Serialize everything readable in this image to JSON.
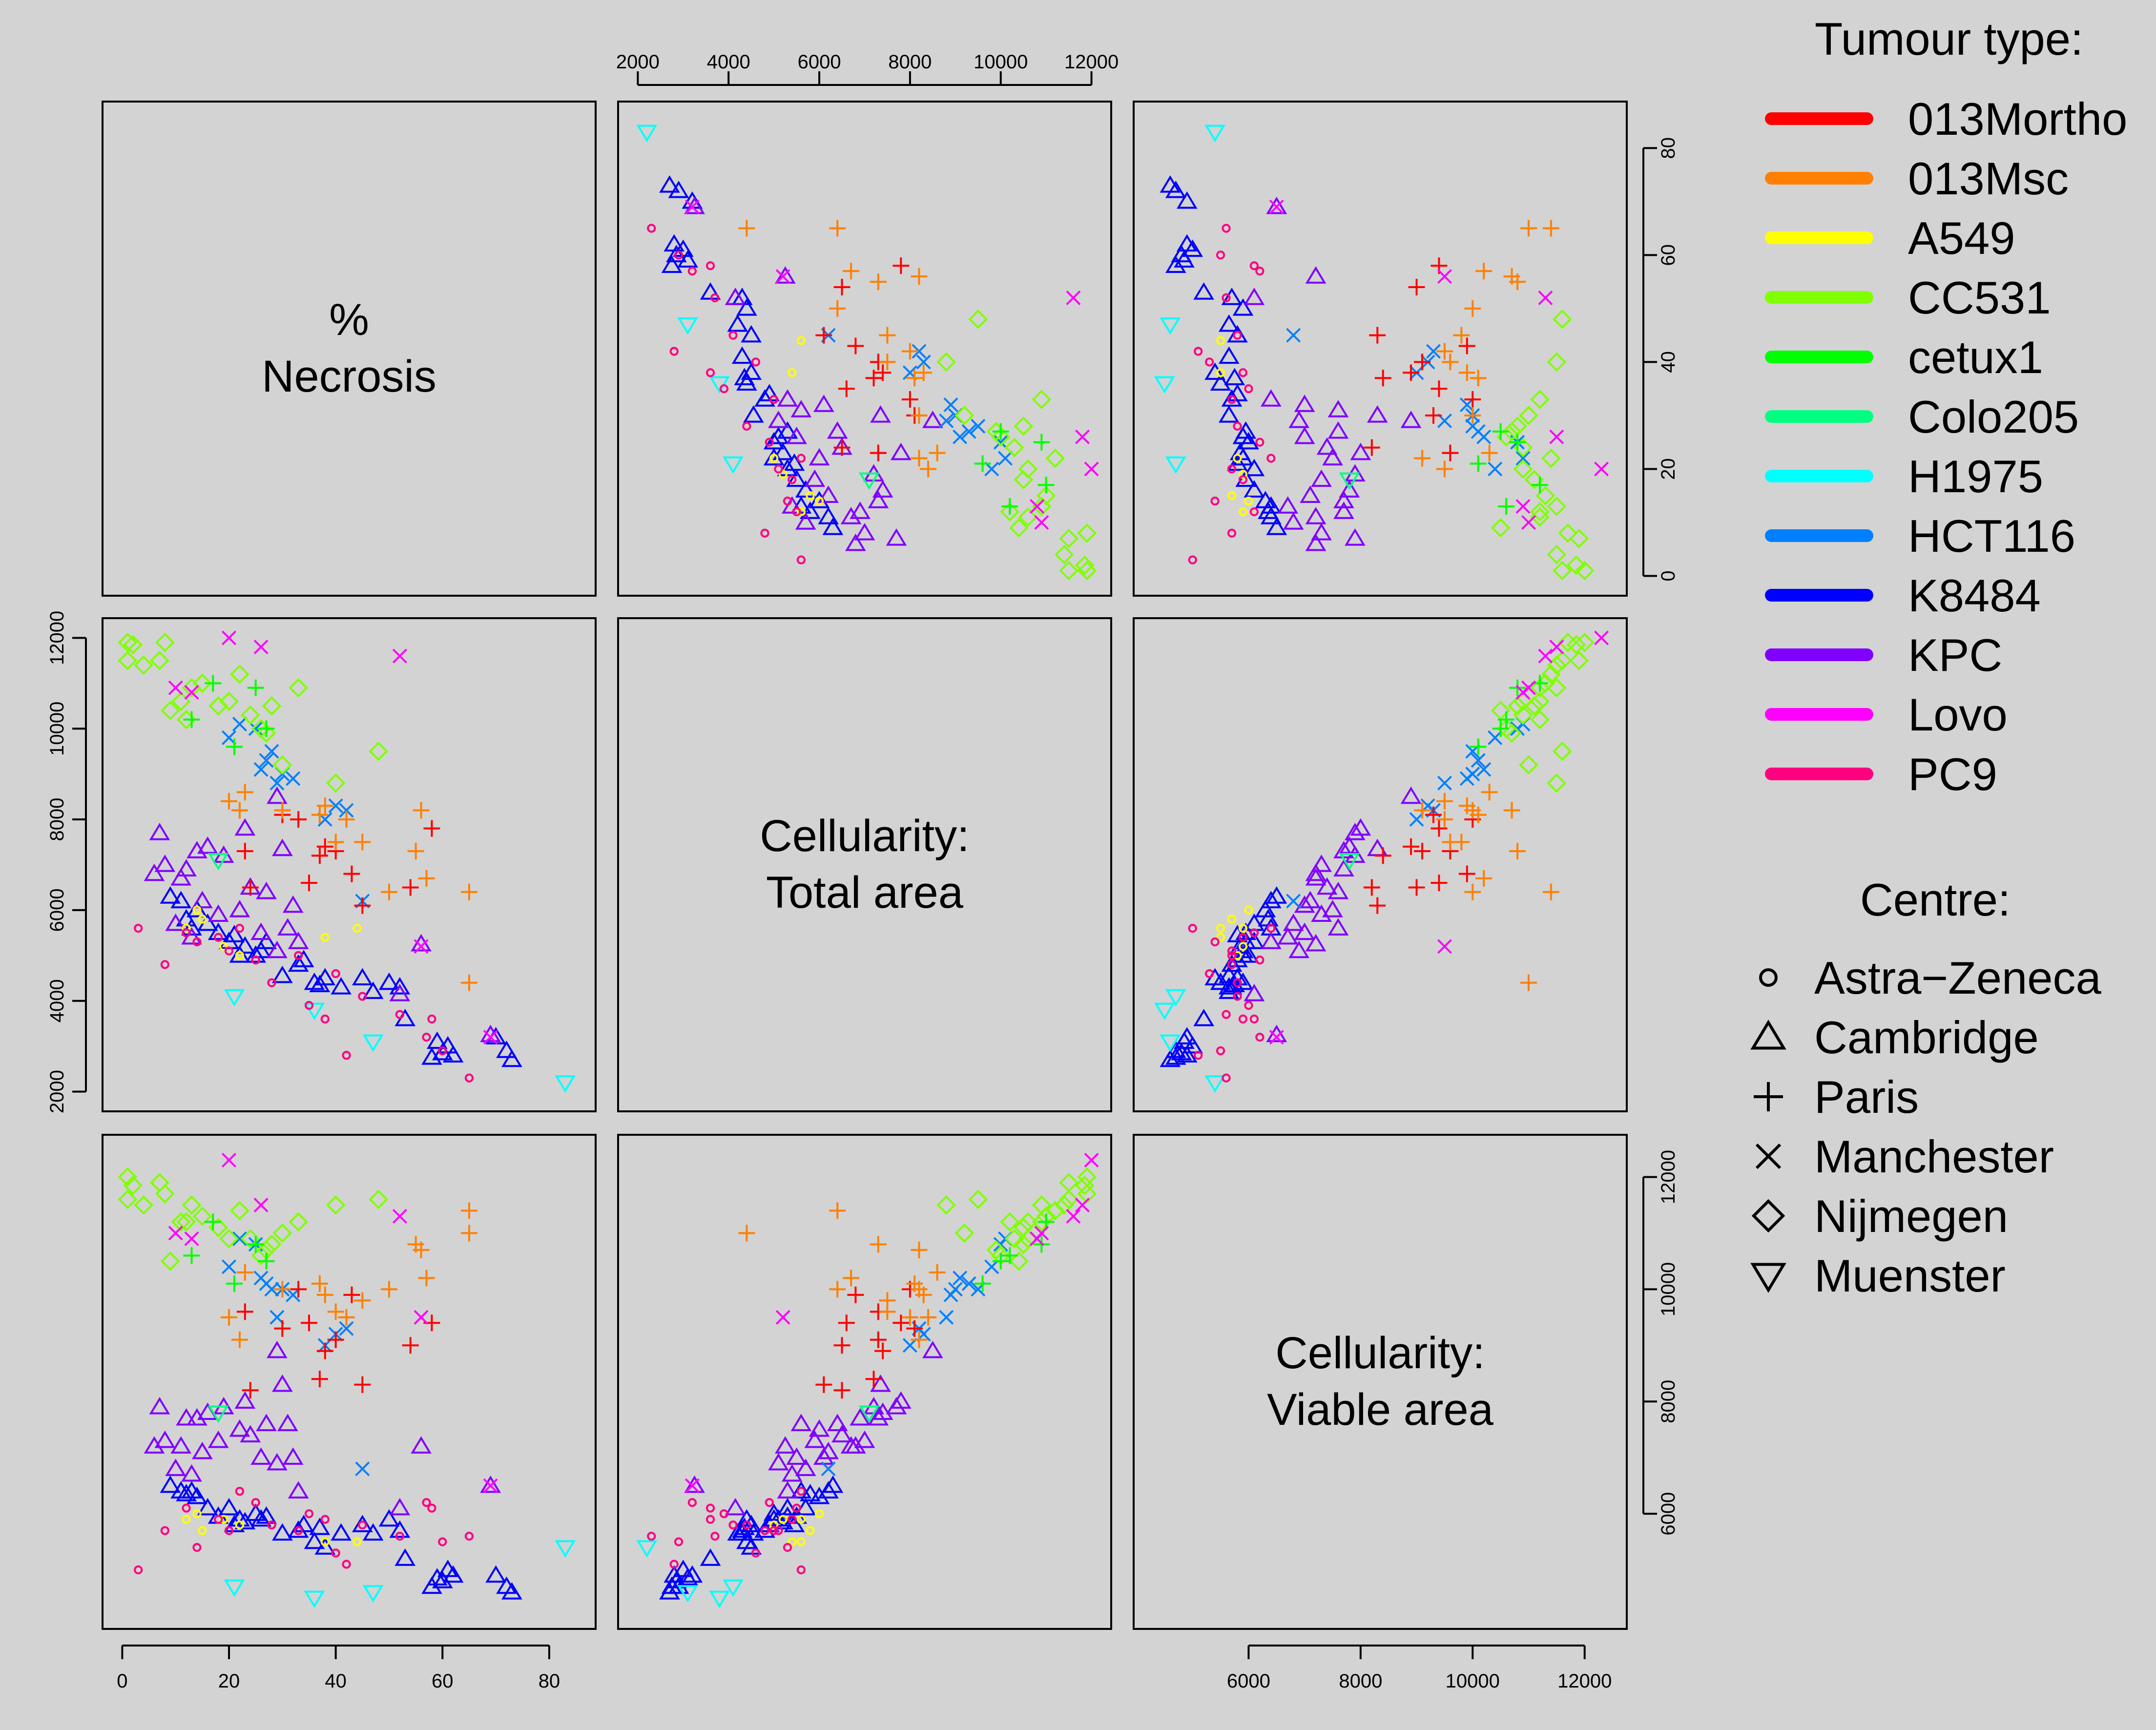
{
  "chart_data": {
    "type": "scatter",
    "subtype": "scatter-plot-matrix",
    "variables": [
      {
        "key": "necrosis",
        "label": [
          "%",
          "Necrosis"
        ],
        "range": [
          0,
          85
        ],
        "ticks": [
          0,
          20,
          40,
          60,
          80
        ]
      },
      {
        "key": "total",
        "label": [
          "Cellularity:",
          "Total area"
        ],
        "range": [
          2000,
          12000
        ],
        "ticks": [
          2000,
          4000,
          6000,
          8000,
          10000,
          12000
        ]
      },
      {
        "key": "viable",
        "label": [
          "Cellularity:",
          "Viable area"
        ],
        "range": [
          4300,
          12400
        ],
        "ticks": [
          6000,
          8000,
          10000,
          12000
        ]
      }
    ],
    "tumour_legend": {
      "title": "Tumour type:",
      "items": [
        {
          "name": "013Mortho",
          "color": "#FF0000"
        },
        {
          "name": "013Msc",
          "color": "#FF8000"
        },
        {
          "name": "A549",
          "color": "#FFFF00"
        },
        {
          "name": "CC531",
          "color": "#80FF00"
        },
        {
          "name": "cetux1",
          "color": "#00FF00"
        },
        {
          "name": "Colo205",
          "color": "#00FF80"
        },
        {
          "name": "H1975",
          "color": "#00FFFF"
        },
        {
          "name": "HCT116",
          "color": "#0080FF"
        },
        {
          "name": "K8484",
          "color": "#0000FF"
        },
        {
          "name": "KPC",
          "color": "#8000FF"
        },
        {
          "name": "Lovo",
          "color": "#FF00FF"
        },
        {
          "name": "PC9",
          "color": "#FF0080"
        }
      ]
    },
    "centre_legend": {
      "title": "Centre:",
      "items": [
        {
          "name": "Astra−Zeneca",
          "symbol": "circle-small"
        },
        {
          "name": "Cambridge",
          "symbol": "triangle-up"
        },
        {
          "name": "Paris",
          "symbol": "plus"
        },
        {
          "name": "Manchester",
          "symbol": "cross"
        },
        {
          "name": "Nijmegen",
          "symbol": "diamond"
        },
        {
          "name": "Muenster",
          "symbol": "triangle-down"
        }
      ]
    },
    "points_columns": [
      "tumour",
      "centre",
      "necrosis",
      "total",
      "viable"
    ],
    "points": [
      [
        "K8484",
        "Cambridge",
        73,
        2700,
        4600
      ],
      [
        "K8484",
        "Cambridge",
        70,
        3200,
        4900
      ],
      [
        "K8484",
        "Cambridge",
        72,
        2900,
        4700
      ],
      [
        "K8484",
        "Cambridge",
        62,
        2800,
        4900
      ],
      [
        "K8484",
        "Cambridge",
        61,
        3000,
        5000
      ],
      [
        "K8484",
        "Cambridge",
        60,
        2850,
        4800
      ],
      [
        "K8484",
        "Cambridge",
        59,
        3100,
        4850
      ],
      [
        "K8484",
        "Cambridge",
        58,
        2750,
        4700
      ],
      [
        "K8484",
        "Cambridge",
        53,
        3600,
        5200
      ],
      [
        "K8484",
        "Cambridge",
        52,
        4300,
        5700
      ],
      [
        "K8484",
        "Cambridge",
        50,
        4400,
        5900
      ],
      [
        "K8484",
        "Cambridge",
        47,
        4200,
        5650
      ],
      [
        "K8484",
        "Cambridge",
        45,
        4500,
        5800
      ],
      [
        "K8484",
        "Cambridge",
        41,
        4300,
        5650
      ],
      [
        "K8484",
        "Cambridge",
        37,
        4350,
        5750
      ],
      [
        "K8484",
        "Cambridge",
        34,
        4900,
        5800
      ],
      [
        "K8484",
        "Cambridge",
        33,
        4800,
        5700
      ],
      [
        "K8484",
        "Cambridge",
        30,
        4550,
        5650
      ],
      [
        "K8484",
        "Cambridge",
        27,
        5300,
        5950
      ],
      [
        "K8484",
        "Cambridge",
        25,
        5000,
        6000
      ],
      [
        "K8484",
        "Cambridge",
        23,
        5200,
        5850
      ],
      [
        "K8484",
        "Cambridge",
        22,
        5000,
        5900
      ],
      [
        "K8484",
        "Cambridge",
        21,
        5450,
        5800
      ],
      [
        "K8484",
        "Cambridge",
        20,
        5300,
        6100
      ],
      [
        "K8484",
        "Cambridge",
        18,
        5500,
        5950
      ],
      [
        "K8484",
        "Cambridge",
        16,
        5700,
        6100
      ],
      [
        "K8484",
        "Cambridge",
        14,
        6000,
        6300
      ],
      [
        "K8484",
        "Cambridge",
        13,
        5600,
        6400
      ],
      [
        "K8484",
        "Cambridge",
        12,
        5800,
        6350
      ],
      [
        "K8484",
        "Cambridge",
        11,
        6200,
        6400
      ],
      [
        "K8484",
        "Cambridge",
        9,
        6300,
        6500
      ],
      [
        "K8484",
        "Cambridge",
        36,
        4400,
        5500
      ],
      [
        "K8484",
        "Cambridge",
        38,
        4500,
        5400
      ],
      [
        "K8484",
        "Cambridge",
        26,
        5100,
        5900
      ],
      [
        "KPC",
        "Cambridge",
        69,
        3250,
        6500
      ],
      [
        "KPC",
        "Cambridge",
        56,
        5250,
        7200
      ],
      [
        "KPC",
        "Cambridge",
        52,
        4150,
        6100
      ],
      [
        "KPC",
        "Cambridge",
        33,
        5300,
        6400
      ],
      [
        "KPC",
        "Cambridge",
        32,
        6100,
        7000
      ],
      [
        "KPC",
        "Cambridge",
        30,
        7350,
        8300
      ],
      [
        "KPC",
        "Cambridge",
        29,
        8500,
        8900
      ],
      [
        "KPC",
        "Cambridge",
        27,
        6400,
        7600
      ],
      [
        "KPC",
        "Cambridge",
        26,
        5500,
        7000
      ],
      [
        "KPC",
        "Cambridge",
        23,
        7800,
        8000
      ],
      [
        "KPC",
        "Cambridge",
        22,
        6000,
        7500
      ],
      [
        "KPC",
        "Cambridge",
        19,
        7200,
        7900
      ],
      [
        "KPC",
        "Cambridge",
        18,
        5900,
        7300
      ],
      [
        "KPC",
        "Cambridge",
        16,
        7400,
        7800
      ],
      [
        "KPC",
        "Cambridge",
        15,
        6200,
        7100
      ],
      [
        "KPC",
        "Cambridge",
        14,
        7300,
        7700
      ],
      [
        "KPC",
        "Cambridge",
        13,
        5400,
        6700
      ],
      [
        "KPC",
        "Cambridge",
        12,
        6900,
        7700
      ],
      [
        "KPC",
        "Cambridge",
        11,
        6700,
        7200
      ],
      [
        "KPC",
        "Cambridge",
        10,
        5700,
        6800
      ],
      [
        "KPC",
        "Cambridge",
        8,
        7000,
        7300
      ],
      [
        "KPC",
        "Cambridge",
        7,
        7700,
        7900
      ],
      [
        "KPC",
        "Cambridge",
        6,
        6800,
        7200
      ],
      [
        "KPC",
        "Cambridge",
        31,
        5600,
        7600
      ],
      [
        "KPC",
        "Cambridge",
        29,
        5100,
        6900
      ],
      [
        "KPC",
        "Cambridge",
        24,
        6500,
        7400
      ],
      [
        "HCT116",
        "Manchester",
        45,
        6200,
        6800
      ],
      [
        "HCT116",
        "Manchester",
        42,
        8200,
        9300
      ],
      [
        "HCT116",
        "Manchester",
        40,
        8300,
        9200
      ],
      [
        "HCT116",
        "Manchester",
        38,
        8000,
        9000
      ],
      [
        "HCT116",
        "Manchester",
        32,
        8900,
        9900
      ],
      [
        "HCT116",
        "Manchester",
        30,
        9000,
        10000
      ],
      [
        "HCT116",
        "Manchester",
        29,
        8800,
        9500
      ],
      [
        "HCT116",
        "Manchester",
        28,
        9500,
        10000
      ],
      [
        "HCT116",
        "Manchester",
        27,
        9300,
        10100
      ],
      [
        "HCT116",
        "Manchester",
        26,
        9100,
        10200
      ],
      [
        "HCT116",
        "Manchester",
        25,
        10000,
        10800
      ],
      [
        "HCT116",
        "Manchester",
        22,
        10100,
        10900
      ],
      [
        "HCT116",
        "Manchester",
        20,
        9800,
        10400
      ],
      [
        "013Mortho",
        "Paris",
        58,
        7800,
        9400
      ],
      [
        "013Mortho",
        "Paris",
        54,
        6500,
        9000
      ],
      [
        "013Mortho",
        "Paris",
        45,
        6100,
        8300
      ],
      [
        "013Mortho",
        "Paris",
        43,
        6800,
        9900
      ],
      [
        "013Mortho",
        "Paris",
        40,
        7300,
        9100
      ],
      [
        "013Mortho",
        "Paris",
        38,
        7400,
        8900
      ],
      [
        "013Mortho",
        "Paris",
        37,
        7200,
        8400
      ],
      [
        "013Mortho",
        "Paris",
        35,
        6600,
        9400
      ],
      [
        "013Mortho",
        "Paris",
        33,
        8000,
        10000
      ],
      [
        "013Mortho",
        "Paris",
        30,
        8100,
        9300
      ],
      [
        "013Mortho",
        "Paris",
        24,
        6500,
        8200
      ],
      [
        "013Mortho",
        "Paris",
        23,
        7300,
        9600
      ],
      [
        "013Msc",
        "Paris",
        65,
        4400,
        11000
      ],
      [
        "013Msc",
        "Paris",
        65,
        6400,
        11400
      ],
      [
        "013Msc",
        "Paris",
        57,
        6700,
        10200
      ],
      [
        "013Msc",
        "Paris",
        55,
        7300,
        10800
      ],
      [
        "013Msc",
        "Paris",
        56,
        8200,
        10700
      ],
      [
        "013Msc",
        "Paris",
        50,
        6400,
        10000
      ],
      [
        "013Msc",
        "Paris",
        45,
        7500,
        9800
      ],
      [
        "013Msc",
        "Paris",
        42,
        8000,
        9500
      ],
      [
        "013Msc",
        "Paris",
        40,
        7500,
        9600
      ],
      [
        "013Msc",
        "Paris",
        37,
        8100,
        10100
      ],
      [
        "013Msc",
        "Paris",
        38,
        8300,
        9900
      ],
      [
        "013Msc",
        "Paris",
        30,
        8200,
        10000
      ],
      [
        "013Msc",
        "Paris",
        23,
        8600,
        10300
      ],
      [
        "013Msc",
        "Paris",
        22,
        8200,
        9100
      ],
      [
        "013Msc",
        "Paris",
        20,
        8400,
        9500
      ],
      [
        "CC531",
        "Nijmegen",
        48,
        9500,
        11600
      ],
      [
        "CC531",
        "Nijmegen",
        40,
        8800,
        11500
      ],
      [
        "CC531",
        "Nijmegen",
        33,
        10900,
        11200
      ],
      [
        "CC531",
        "Nijmegen",
        30,
        9200,
        11000
      ],
      [
        "CC531",
        "Nijmegen",
        28,
        10500,
        10800
      ],
      [
        "CC531",
        "Nijmegen",
        27,
        9900,
        10700
      ],
      [
        "CC531",
        "Nijmegen",
        26,
        10000,
        10600
      ],
      [
        "CC531",
        "Nijmegen",
        24,
        10300,
        10900
      ],
      [
        "CC531",
        "Nijmegen",
        22,
        11200,
        11400
      ],
      [
        "CC531",
        "Nijmegen",
        20,
        10600,
        10900
      ],
      [
        "CC531",
        "Nijmegen",
        18,
        10500,
        11100
      ],
      [
        "CC531",
        "Nijmegen",
        15,
        11000,
        11300
      ],
      [
        "CC531",
        "Nijmegen",
        13,
        10900,
        11500
      ],
      [
        "CC531",
        "Nijmegen",
        11,
        10600,
        11200
      ],
      [
        "CC531",
        "Nijmegen",
        9,
        10400,
        10500
      ],
      [
        "CC531",
        "Nijmegen",
        8,
        11900,
        11700
      ],
      [
        "CC531",
        "Nijmegen",
        7,
        11500,
        11900
      ],
      [
        "CC531",
        "Nijmegen",
        4,
        11400,
        11500
      ],
      [
        "CC531",
        "Nijmegen",
        2,
        11850,
        11850
      ],
      [
        "CC531",
        "Nijmegen",
        1,
        11900,
        12000
      ],
      [
        "CC531",
        "Nijmegen",
        1,
        11500,
        11600
      ],
      [
        "CC531",
        "Nijmegen",
        12,
        10200,
        11200
      ],
      [
        "cetux1",
        "Paris",
        27,
        10000,
        10500
      ],
      [
        "cetux1",
        "Paris",
        25,
        10900,
        10800
      ],
      [
        "cetux1",
        "Paris",
        21,
        9600,
        10100
      ],
      [
        "cetux1",
        "Paris",
        17,
        11000,
        11200
      ],
      [
        "cetux1",
        "Paris",
        13,
        10200,
        10600
      ],
      [
        "Colo205",
        "Muenster",
        18,
        7100,
        7800
      ],
      [
        "H1975",
        "Muenster",
        83,
        2200,
        5400
      ],
      [
        "H1975",
        "Muenster",
        47,
        3100,
        4600
      ],
      [
        "H1975",
        "Muenster",
        36,
        3800,
        4500
      ],
      [
        "H1975",
        "Muenster",
        21,
        4100,
        4700
      ],
      [
        "A549",
        "Astra-Zeneca",
        44,
        5600,
        5500
      ],
      [
        "A549",
        "Astra-Zeneca",
        38,
        5400,
        5500
      ],
      [
        "A549",
        "Astra-Zeneca",
        22,
        5000,
        5800
      ],
      [
        "A549",
        "Astra-Zeneca",
        19,
        5200,
        5900
      ],
      [
        "A549",
        "Astra-Zeneca",
        15,
        5800,
        5700
      ],
      [
        "A549",
        "Astra-Zeneca",
        14,
        6000,
        6000
      ],
      [
        "A549",
        "Astra-Zeneca",
        12,
        5600,
        5900
      ],
      [
        "Lovo",
        "Manchester",
        69,
        3200,
        6500
      ],
      [
        "Lovo",
        "Manchester",
        56,
        5200,
        9500
      ],
      [
        "Lovo",
        "Manchester",
        52,
        11600,
        11300
      ],
      [
        "Lovo",
        "Manchester",
        26,
        11800,
        11500
      ],
      [
        "Lovo",
        "Manchester",
        20,
        12000,
        12300
      ],
      [
        "Lovo",
        "Manchester",
        13,
        10800,
        10900
      ],
      [
        "Lovo",
        "Manchester",
        10,
        10900,
        11000
      ],
      [
        "PC9",
        "Astra-Zeneca",
        65,
        2300,
        5600
      ],
      [
        "PC9",
        "Astra-Zeneca",
        60,
        2900,
        5500
      ],
      [
        "PC9",
        "Astra-Zeneca",
        57,
        3200,
        6200
      ],
      [
        "PC9",
        "Astra-Zeneca",
        52,
        3700,
        5600
      ],
      [
        "PC9",
        "Astra-Zeneca",
        45,
        4100,
        5800
      ],
      [
        "PC9",
        "Astra-Zeneca",
        42,
        2800,
        5100
      ],
      [
        "PC9",
        "Astra-Zeneca",
        38,
        3600,
        5900
      ],
      [
        "PC9",
        "Astra-Zeneca",
        35,
        3900,
        6000
      ],
      [
        "PC9",
        "Astra-Zeneca",
        28,
        4400,
        5800
      ],
      [
        "PC9",
        "Astra-Zeneca",
        25,
        4900,
        6200
      ],
      [
        "PC9",
        "Astra-Zeneca",
        22,
        5600,
        6400
      ],
      [
        "PC9",
        "Astra-Zeneca",
        20,
        5100,
        5700
      ],
      [
        "PC9",
        "Astra-Zeneca",
        18,
        5400,
        5900
      ],
      [
        "PC9",
        "Astra-Zeneca",
        12,
        5500,
        6100
      ],
      [
        "PC9",
        "Astra-Zeneca",
        8,
        4800,
        5700
      ],
      [
        "PC9",
        "Astra-Zeneca",
        3,
        5600,
        5000
      ],
      [
        "PC9",
        "Astra-Zeneca",
        58,
        3600,
        6100
      ],
      [
        "PC9",
        "Astra-Zeneca",
        40,
        4600,
        5300
      ],
      [
        "PC9",
        "Astra-Zeneca",
        33,
        5000,
        5700
      ],
      [
        "PC9",
        "Astra-Zeneca",
        14,
        5300,
        5400
      ]
    ]
  }
}
